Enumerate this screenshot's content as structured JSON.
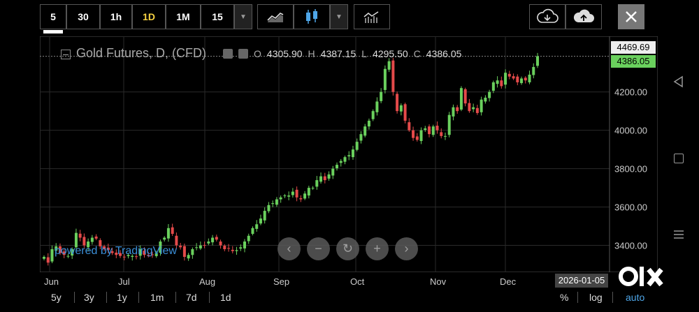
{
  "toolbar": {
    "intervals": [
      "5",
      "30",
      "1h",
      "1D",
      "1M",
      "15"
    ],
    "active_interval": "1D",
    "chart_type_icon": "line-chart-icon",
    "candle_icon": "candlestick-icon",
    "indicator_icon": "indicators-icon",
    "download_icon": "cloud-download-icon",
    "upload_icon": "cloud-upload-icon",
    "close_icon": "close-icon"
  },
  "legend": {
    "symbol": "Gold Futures, D, (CFD)",
    "o_label": "O",
    "o_value": "4305.90",
    "h_label": "H",
    "h_value": "4387.15",
    "l_label": "L",
    "l_value": "4295.50",
    "c_label": "C",
    "c_value": "4386.05"
  },
  "price_labels": {
    "high": "4469.69",
    "last": "4386.05"
  },
  "watermark": "powered by TradingView",
  "date_tooltip": "2026-01-05",
  "periods": [
    "5y",
    "3y",
    "1y",
    "1m",
    "7d",
    "1d"
  ],
  "scale_options": [
    "%",
    "log",
    "auto"
  ],
  "colors": {
    "up": "#6ad05d",
    "down": "#e44a4a",
    "last_price_bg": "#6ad05d"
  },
  "chart_data": {
    "type": "candlestick",
    "title": "Gold Futures, D, (CFD)",
    "y_ticks": [
      3400,
      3600,
      3800,
      4000,
      4200
    ],
    "x_ticks": [
      "Jun",
      "Jul",
      "Aug",
      "Sep",
      "Oct",
      "Nov",
      "Dec"
    ],
    "ylim": [
      3260,
      4490
    ],
    "series_close": [
      3340,
      3310,
      3380,
      3395,
      3360,
      3350,
      3345,
      3380,
      3465,
      3440,
      3400,
      3420,
      3440,
      3435,
      3395,
      3380,
      3375,
      3360,
      3350,
      3345,
      3340,
      3350,
      3345,
      3340,
      3380,
      3350,
      3345,
      3350,
      3360,
      3420,
      3440,
      3490,
      3460,
      3400,
      3390,
      3340,
      3350,
      3380,
      3390,
      3400,
      3400,
      3420,
      3440,
      3430,
      3400,
      3380,
      3385,
      3370,
      3375,
      3390,
      3420,
      3450,
      3490,
      3510,
      3540,
      3580,
      3610,
      3620,
      3640,
      3650,
      3660,
      3660,
      3680,
      3650,
      3640,
      3670,
      3700,
      3700,
      3740,
      3760,
      3740,
      3770,
      3800,
      3820,
      3840,
      3860,
      3870,
      3900,
      3940,
      3980,
      4020,
      4050,
      4100,
      4150,
      4200,
      4320,
      4360,
      4200,
      4100,
      4130,
      4050,
      4000,
      3960,
      3950,
      4000,
      4010,
      3980,
      4020,
      4000,
      3970,
      3970,
      4080,
      4120,
      4100,
      4220,
      4140,
      4100,
      4120,
      4090,
      4160,
      4170,
      4200,
      4250,
      4260,
      4230,
      4300,
      4280,
      4270,
      4250,
      4270,
      4260,
      4290,
      4330,
      4386
    ],
    "last_price": 4386.05
  }
}
